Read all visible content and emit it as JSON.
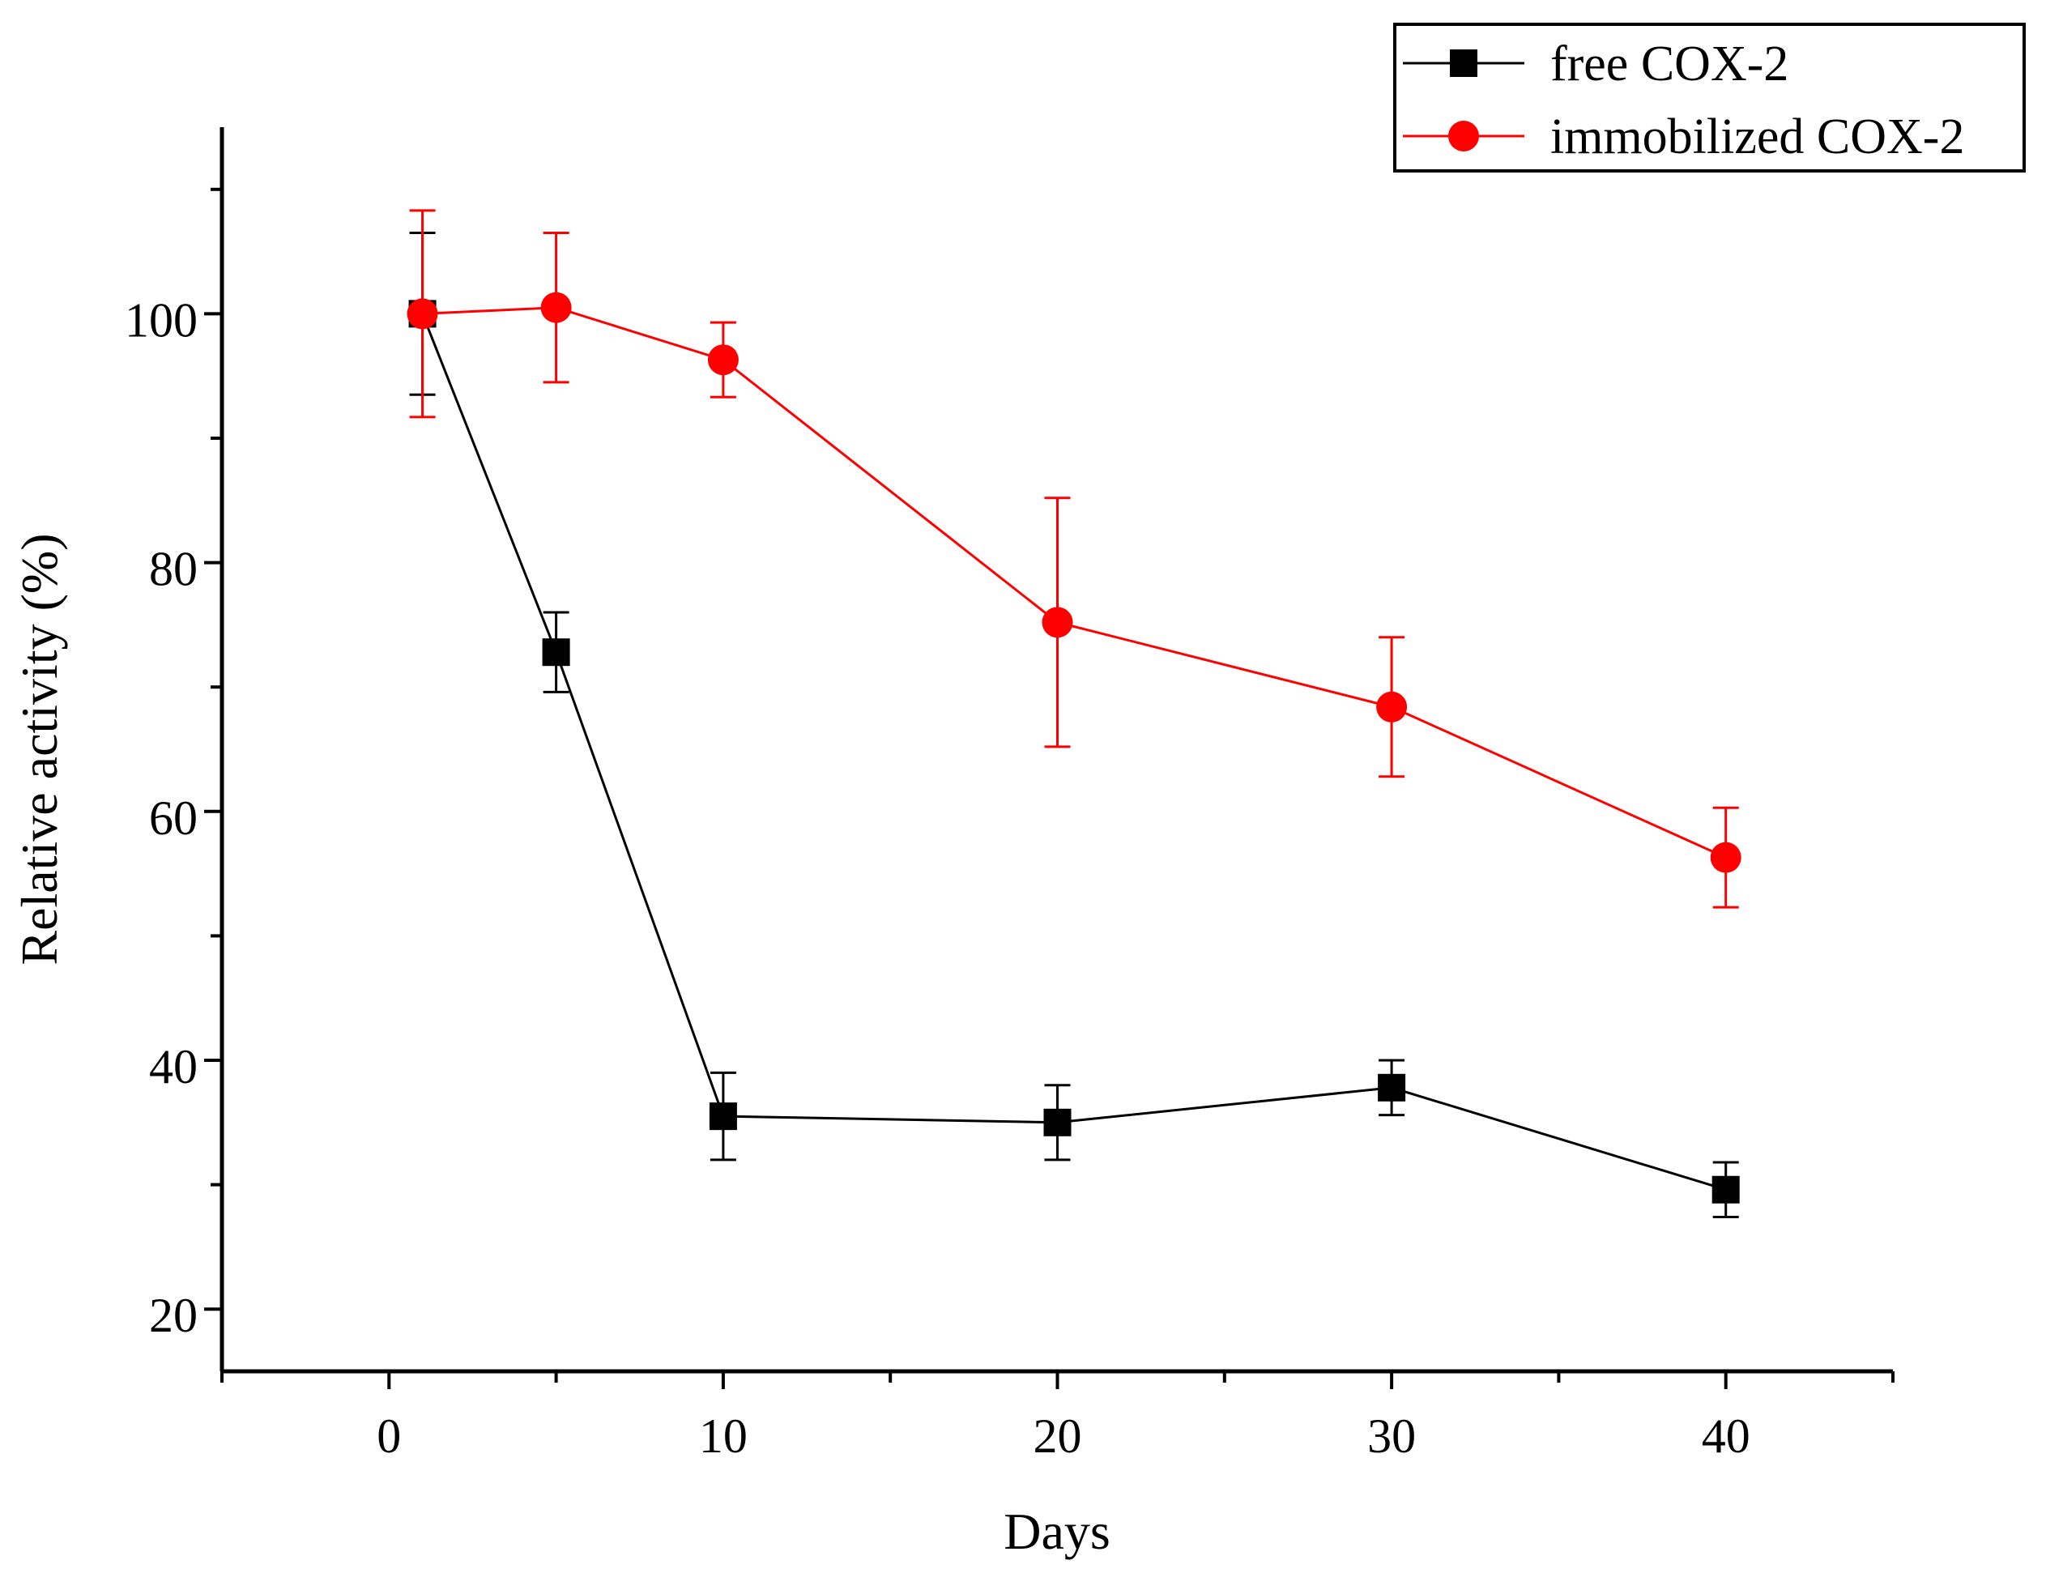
{
  "chart_data": {
    "type": "line",
    "title": "",
    "xlabel": "Days",
    "ylabel": "Relative activity (%)",
    "xlim": [
      -5,
      45
    ],
    "ylim": [
      15,
      115
    ],
    "x_ticks": [
      0,
      10,
      20,
      30,
      40
    ],
    "x_tick_labels": [
      "0",
      "10",
      "20",
      "30",
      "40"
    ],
    "y_ticks": [
      20,
      40,
      60,
      80,
      100
    ],
    "y_tick_labels": [
      "20",
      "40",
      "60",
      "80",
      "100"
    ],
    "grid": false,
    "legend_position": "top-right",
    "series": [
      {
        "name": "free COX-2",
        "color": "#000000",
        "marker": "square",
        "x": [
          1,
          5,
          10,
          20,
          30,
          40
        ],
        "y": [
          100,
          72.8,
          35.5,
          35,
          37.8,
          29.6
        ],
        "err": [
          6.5,
          3.2,
          3.5,
          3.0,
          2.2,
          2.2
        ]
      },
      {
        "name": "immobilized COX-2",
        "color": "#ff0000",
        "marker": "circle",
        "x": [
          1,
          5,
          10,
          20,
          30,
          40
        ],
        "y": [
          100,
          100.5,
          96.3,
          75.2,
          68.4,
          56.3
        ],
        "err": [
          8.3,
          6.0,
          3.0,
          10.0,
          5.6,
          4.0
        ]
      }
    ]
  }
}
